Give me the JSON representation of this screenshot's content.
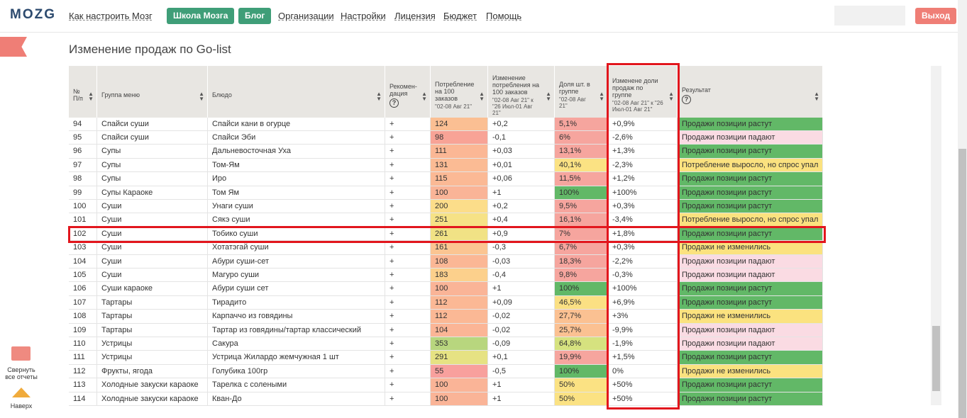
{
  "nav": {
    "logo": "MOZG",
    "links": [
      "Как настроить Мозг"
    ],
    "buttons": [
      "Школа Мозга",
      "Блог"
    ],
    "links2": [
      "Организации",
      "Настройки",
      "Лицензия",
      "Бюджет",
      "Помощь"
    ],
    "logout": "Выход"
  },
  "sidebar": {
    "collapse": "Свернуть все отчеты",
    "top": "Наверх"
  },
  "title": "Изменение продаж по Go-list",
  "header": {
    "columns": [
      {
        "label": "№ П/п"
      },
      {
        "label": "Группа меню"
      },
      {
        "label": "Блюдо"
      },
      {
        "label": "Рекомен-дация"
      },
      {
        "label": "Потребление на 100 заказов",
        "sub": "\"02-08 Авг 21\""
      },
      {
        "label": "Изменение потребления на 100 заказов",
        "sub": "\"02-08 Авг 21\" к \"26 Июл-01 Авг 21\""
      },
      {
        "label": "Доля шт. в группе",
        "sub": "\"02-08 Авг 21\""
      },
      {
        "label": "Изменене доли продаж по группе",
        "sub": "\"02-08 Авг 21\" к \"26 Июл-01 Авг 21\""
      },
      {
        "label": "Результат"
      }
    ]
  },
  "rows": [
    [
      "94",
      "Спайси суши",
      "Спайси кани в огурце",
      "+",
      "124",
      "+0,2",
      "5,1%",
      "+0,9%",
      "Продажи позиции растут"
    ],
    [
      "95",
      "Спайси суши",
      "Спайси Эби",
      "+",
      "98",
      "-0,1",
      "6%",
      "-2,6%",
      "Продажи позиции падают"
    ],
    [
      "96",
      "Супы",
      "Дальневосточная Уха",
      "+",
      "111",
      "+0,03",
      "13,1%",
      "+1,3%",
      "Продажи позиции растут"
    ],
    [
      "97",
      "Супы",
      "Том-Ям",
      "+",
      "131",
      "+0,01",
      "40,1%",
      "-2,3%",
      "Потребление выросло, но спрос упал"
    ],
    [
      "98",
      "Супы",
      "Иро",
      "+",
      "115",
      "+0,06",
      "11,5%",
      "+1,2%",
      "Продажи позиции растут"
    ],
    [
      "99",
      "Супы Караоке",
      "Том Ям",
      "+",
      "100",
      "+1",
      "100%",
      "+100%",
      "Продажи позиции растут"
    ],
    [
      "100",
      "Суши",
      "Унаги суши",
      "+",
      "200",
      "+0,2",
      "9,5%",
      "+0,3%",
      "Продажи позиции растут"
    ],
    [
      "101",
      "Суши",
      "Сякэ суши",
      "+",
      "251",
      "+0,4",
      "16,1%",
      "-3,4%",
      "Потребление выросло, но спрос упал"
    ],
    [
      "102",
      "Суши",
      "Тобико суши",
      "+",
      "261",
      "+0,9",
      "7%",
      "+1,8%",
      "Продажи позиции растут"
    ],
    [
      "103",
      "Суши",
      "Хотатэгай суши",
      "+",
      "161",
      "-0,3",
      "6,7%",
      "+0,3%",
      "Продажи не изменились"
    ],
    [
      "104",
      "Суши",
      "Абури суши-сет",
      "+",
      "108",
      "-0,03",
      "18,3%",
      "-2,2%",
      "Продажи позиции падают"
    ],
    [
      "105",
      "Суши",
      "Магуро суши",
      "+",
      "183",
      "-0,4",
      "9,8%",
      "-0,3%",
      "Продажи позиции падают"
    ],
    [
      "106",
      "Суши караоке",
      "Абури суши сет",
      "+",
      "100",
      "+1",
      "100%",
      "+100%",
      "Продажи позиции растут"
    ],
    [
      "107",
      "Тартары",
      "Тирадито",
      "+",
      "112",
      "+0,09",
      "46,5%",
      "+6,9%",
      "Продажи позиции растут"
    ],
    [
      "108",
      "Тартары",
      "Карпаччо из говядины",
      "+",
      "112",
      "-0,02",
      "27,7%",
      "+3%",
      "Продажи не изменились"
    ],
    [
      "109",
      "Тартары",
      "Тартар из говядины/тартар классический",
      "+",
      "104",
      "-0,02",
      "25,7%",
      "-9,9%",
      "Продажи позиции падают"
    ],
    [
      "110",
      "Устрицы",
      "Сакура",
      "+",
      "353",
      "-0,09",
      "64,8%",
      "-1,9%",
      "Продажи позиции падают"
    ],
    [
      "111",
      "Устрицы",
      "Устрица Жилардо жемчужная 1 шт",
      "+",
      "291",
      "+0,1",
      "19,9%",
      "+1,5%",
      "Продажи позиции растут"
    ],
    [
      "112",
      "Фрукты, ягода",
      "Голубика 100гр",
      "+",
      "55",
      "-0,5",
      "100%",
      "0%",
      "Продажи не изменились"
    ],
    [
      "113",
      "Холодные закуски караоке",
      "Тарелка с солеными",
      "+",
      "100",
      "+1",
      "50%",
      "+50%",
      "Продажи позиции растут"
    ],
    [
      "114",
      "Холодные закуски караоке",
      "Кван-До",
      "+",
      "100",
      "+1",
      "50%",
      "+50%",
      "Продажи позиции растут"
    ]
  ],
  "cell_colors": [
    [
      "#fbbf93",
      "#f6a59e",
      "#62b867"
    ],
    [
      "#f8a396",
      "#f6a59e",
      "#fadbe3"
    ],
    [
      "#fbb795",
      "#f6a59e",
      "#62b867"
    ],
    [
      "#fbbb94",
      "#fbe283",
      "#fbe27f"
    ],
    [
      "#fbb995",
      "#f6a59e",
      "#62b867"
    ],
    [
      "#fab497",
      "#62b867",
      "#62b867"
    ],
    [
      "#fcdd8a",
      "#f6a59e",
      "#62b867"
    ],
    [
      "#f6e286",
      "#f6a59e",
      "#fbe27f"
    ],
    [
      "#f1e285",
      "#f6a59e",
      "#62b867"
    ],
    [
      "#fbc592",
      "#f6a59e",
      "#fbe27f"
    ],
    [
      "#fbb795",
      "#f6a59e",
      "#fadbe3"
    ],
    [
      "#fcd08c",
      "#f6a59e",
      "#fadbe3"
    ],
    [
      "#fab497",
      "#62b867",
      "#62b867"
    ],
    [
      "#fbb895",
      "#fbe083",
      "#62b867"
    ],
    [
      "#fbb895",
      "#fbc192",
      "#fbe27f"
    ],
    [
      "#fbb596",
      "#fbc192",
      "#fadbe3"
    ],
    [
      "#b8d67e",
      "#d6e27f",
      "#fadbe3"
    ],
    [
      "#e6e283",
      "#f6a59e",
      "#62b867"
    ],
    [
      "#f8a09d",
      "#62b867",
      "#fbe27f"
    ],
    [
      "#fab497",
      "#fbe283",
      "#62b867"
    ],
    [
      "#fab497",
      "#fbe283",
      "#62b867"
    ]
  ]
}
